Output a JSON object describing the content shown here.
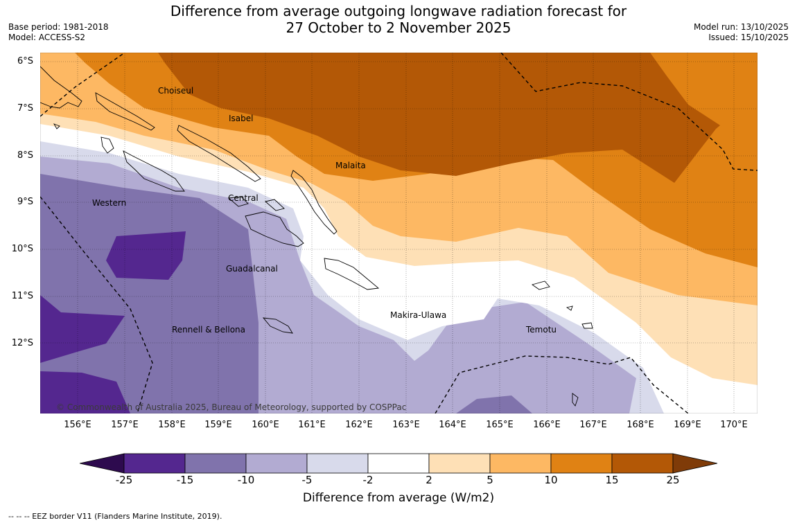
{
  "header": {
    "title_line1": "Difference from average outgoing longwave radiation forecast for",
    "title_line2": "27 October to 2 November 2025",
    "base_period": "Base period: 1981-2018",
    "model": "Model: ACCESS-S2",
    "model_run": "Model run: 13/10/2025",
    "issued": "Issued: 15/10/2025"
  },
  "map": {
    "lat_labels": [
      "6°S",
      "7°S",
      "8°S",
      "9°S",
      "10°S",
      "11°S",
      "12°S"
    ],
    "lon_labels": [
      "156°E",
      "157°E",
      "158°E",
      "159°E",
      "160°E",
      "161°E",
      "162°E",
      "163°E",
      "164°E",
      "165°E",
      "166°E",
      "167°E",
      "168°E",
      "169°E",
      "170°E"
    ],
    "province_labels": {
      "choiseul": "Choiseul",
      "isabel": "Isabel",
      "malaita": "Malaita",
      "western": "Western",
      "central": "Central",
      "guadalcanal": "Guadalcanal",
      "makira": "Makira-Ulawa",
      "temotu": "Temotu",
      "rennell": "Rennell & Bellona"
    },
    "copyright": "© Commonwealth of Australia 2025, Bureau of Meteorology, supported by COSPPac"
  },
  "colorbar": {
    "title": "Difference from average (W/m2)",
    "ticks": [
      "-25",
      "-15",
      "-10",
      "-5",
      "-2",
      "2",
      "5",
      "10",
      "15",
      "25"
    ],
    "colors": {
      "below": "#2d0a4e",
      "c1": "#54278f",
      "c2": "#8073ac",
      "c3": "#b2abd2",
      "c4": "#d8daeb",
      "c5": "#ffffff",
      "c6": "#fee0b6",
      "c7": "#fdb863",
      "c8": "#e08214",
      "c9": "#b35806",
      "above": "#7f3b08"
    }
  },
  "footer": {
    "eez_note": "--  --  -- EEZ border V11 (Flanders Marine Institute, 2019)."
  }
}
